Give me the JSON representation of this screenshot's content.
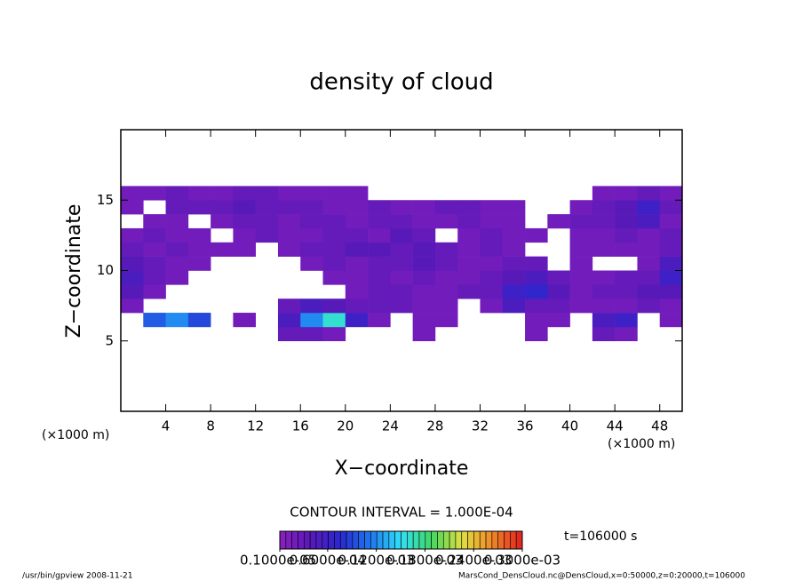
{
  "chart_data": {
    "type": "heatmap",
    "title": "density of cloud",
    "x_label": "X−coordinate",
    "y_label": "Z−coordinate",
    "x_unit_label": "(×1000 m)",
    "y_unit_label": "(×1000 m)",
    "contour_interval": "CONTOUR INTERVAL = 1.000E-04",
    "time_label": "t=106000 s",
    "footer_left": "/usr/bin/gpview  2008-11-21",
    "footer_right": "MarsCond_DensCloud.nc@DensCloud,x=0:50000,z=0:20000,t=106000",
    "xlim": [
      0,
      50
    ],
    "ylim": [
      0,
      20
    ],
    "xticks": [
      4,
      8,
      12,
      16,
      20,
      24,
      28,
      32,
      36,
      40,
      44,
      48
    ],
    "yticks": [
      5,
      10,
      15
    ],
    "x": [
      1,
      3,
      5,
      7,
      9,
      11,
      13,
      15,
      17,
      19,
      21,
      23,
      25,
      27,
      29,
      31,
      33,
      35,
      37,
      39,
      41,
      43,
      45,
      47,
      49
    ],
    "y": [
      5.5,
      6.5,
      7.5,
      8.5,
      9.5,
      10.5,
      11.5,
      12.5,
      13.5,
      14.5,
      15.5
    ],
    "z": [
      [
        null,
        null,
        null,
        null,
        null,
        null,
        null,
        3e-05,
        3e-05,
        2e-05,
        null,
        null,
        null,
        2e-05,
        null,
        null,
        null,
        null,
        2e-05,
        null,
        null,
        3e-05,
        2e-05,
        null,
        null
      ],
      [
        null,
        0.0001,
        0.00012,
        9e-05,
        null,
        2e-05,
        null,
        5e-05,
        0.00012,
        0.00016,
        6e-05,
        2e-05,
        null,
        2e-05,
        2e-05,
        null,
        null,
        null,
        2e-05,
        2e-05,
        null,
        5e-05,
        6e-05,
        null,
        2e-05
      ],
      [
        2e-05,
        null,
        null,
        null,
        null,
        null,
        null,
        3e-05,
        5e-05,
        4e-05,
        3e-05,
        3e-05,
        3e-05,
        2e-05,
        2e-05,
        null,
        2e-05,
        5e-05,
        3e-05,
        3e-05,
        2e-05,
        2e-05,
        2e-05,
        3e-05,
        2e-05
      ],
      [
        4e-05,
        2e-05,
        null,
        null,
        null,
        null,
        null,
        null,
        null,
        null,
        2e-05,
        3e-05,
        3e-05,
        2e-05,
        2e-05,
        3e-05,
        3e-05,
        6e-05,
        7e-05,
        4e-05,
        2e-05,
        3e-05,
        3e-05,
        4e-05,
        4e-05
      ],
      [
        5e-05,
        3e-05,
        2e-05,
        null,
        null,
        null,
        null,
        null,
        null,
        2e-05,
        2e-05,
        3e-05,
        2e-05,
        3e-05,
        2e-05,
        2e-05,
        3e-05,
        4e-05,
        5e-05,
        3e-05,
        2e-05,
        2e-05,
        3e-05,
        3e-05,
        6e-05
      ],
      [
        4e-05,
        3e-05,
        2e-05,
        2e-05,
        null,
        null,
        null,
        null,
        2e-05,
        3e-05,
        2e-05,
        3e-05,
        3e-05,
        4e-05,
        3e-05,
        2e-05,
        2e-05,
        3e-05,
        3e-05,
        null,
        2e-05,
        null,
        null,
        2e-05,
        5e-05
      ],
      [
        3e-05,
        2e-05,
        3e-05,
        2e-05,
        2e-05,
        2e-05,
        null,
        2e-05,
        3e-05,
        3e-05,
        4e-05,
        4e-05,
        3e-05,
        4e-05,
        3e-05,
        2e-05,
        3e-05,
        2e-05,
        null,
        null,
        2e-05,
        2e-05,
        2e-05,
        2e-05,
        3e-05
      ],
      [
        2e-05,
        3e-05,
        2e-05,
        2e-05,
        null,
        2e-05,
        3e-05,
        2e-05,
        2e-05,
        3e-05,
        3e-05,
        2e-05,
        4e-05,
        3e-05,
        null,
        2e-05,
        3e-05,
        2e-05,
        2e-05,
        null,
        2e-05,
        2e-05,
        3e-05,
        2e-05,
        3e-05
      ],
      [
        null,
        2e-05,
        2e-05,
        null,
        2e-05,
        3e-05,
        3e-05,
        2e-05,
        3e-05,
        3e-05,
        2e-05,
        3e-05,
        3e-05,
        2e-05,
        2e-05,
        3e-05,
        2e-05,
        2e-05,
        null,
        2e-05,
        3e-05,
        3e-05,
        4e-05,
        5e-05,
        2e-05
      ],
      [
        2e-05,
        null,
        3e-05,
        3e-05,
        3e-05,
        4e-05,
        3e-05,
        3e-05,
        3e-05,
        2e-05,
        2e-05,
        3e-05,
        2e-05,
        2e-05,
        3e-05,
        3e-05,
        2e-05,
        2e-05,
        null,
        null,
        2e-05,
        3e-05,
        4e-05,
        6e-05,
        3e-05
      ],
      [
        2e-05,
        2e-05,
        3e-05,
        2e-05,
        2e-05,
        3e-05,
        3e-05,
        2e-05,
        2e-05,
        2e-05,
        2e-05,
        null,
        null,
        null,
        null,
        null,
        null,
        null,
        null,
        null,
        null,
        2e-05,
        2e-05,
        3e-05,
        2e-05
      ]
    ],
    "clim": [
      1e-06,
      0.0003
    ],
    "colormap": [
      "#8a20c0",
      "#5a18b8",
      "#2a28d0",
      "#1e78f0",
      "#30e0f8",
      "#40d860",
      "#e0e040",
      "#f08828",
      "#e02020"
    ],
    "cbticks": [
      {
        "value": 1e-06,
        "label": "0.1000e-05"
      },
      {
        "value": 6e-05,
        "label": "0.6000e-04"
      },
      {
        "value": 0.00012,
        "label": "0.1200e-03"
      },
      {
        "value": 0.00018,
        "label": "0.1800e-03"
      },
      {
        "value": 0.00024,
        "label": "0.2400e-03"
      },
      {
        "value": 0.0003,
        "label": "0.3000e-03"
      }
    ]
  }
}
